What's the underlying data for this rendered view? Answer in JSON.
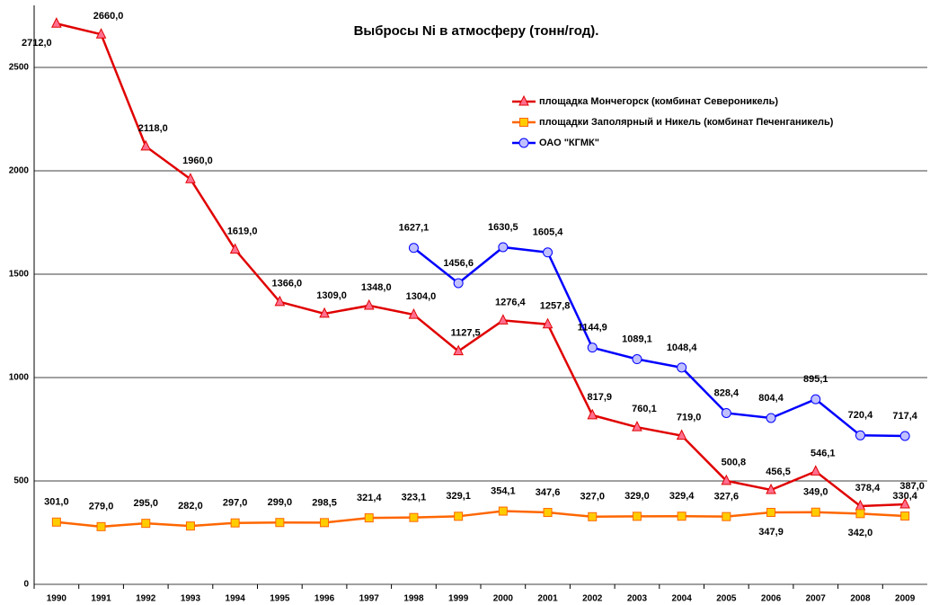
{
  "chart_data": {
    "type": "line",
    "title": "Выбросы Ni в атмосферу (тонн/год).",
    "categories": [
      "1990",
      "1991",
      "1992",
      "1993",
      "1994",
      "1995",
      "1996",
      "1997",
      "1998",
      "1999",
      "2000",
      "2001",
      "2002",
      "2003",
      "2004",
      "2005",
      "2006",
      "2007",
      "2008",
      "2009"
    ],
    "series": [
      {
        "name": "площадка Мончегорск (комбинат Североникель)",
        "color": "#e00000",
        "marker": "triangle",
        "marker_color": "#ff6f8f",
        "values": [
          2712.0,
          2660.0,
          2118.0,
          1960.0,
          1619.0,
          1366.0,
          1309.0,
          1348.0,
          1304.0,
          1127.5,
          1276.4,
          1257.8,
          817.9,
          760.1,
          719.0,
          500.8,
          456.5,
          546.1,
          378.4,
          387.0
        ],
        "value_labels": [
          "2712,0",
          "2660,0",
          "2118,0",
          "1960,0",
          "1619,0",
          "1366,0",
          "1309,0",
          "1348,0",
          "1304,0",
          "1127,5",
          "1276,4",
          "1257,8",
          "817,9",
          "760,1",
          "719,0",
          "500,8",
          "456,5",
          "546,1",
          "378,4",
          "387,0"
        ]
      },
      {
        "name": "площадки Заполярный и Никель (комбинат Печенганикель)",
        "color": "#ff6600",
        "marker": "square",
        "marker_color": "#ffcc00",
        "values": [
          301.0,
          279.0,
          295.0,
          282.0,
          297.0,
          299.0,
          298.5,
          321.4,
          323.1,
          329.1,
          354.1,
          347.6,
          327.0,
          329.0,
          329.4,
          327.6,
          347.9,
          349.0,
          342.0,
          330.4
        ],
        "value_labels": [
          "301,0",
          "279,0",
          "295,0",
          "282,0",
          "297,0",
          "299,0",
          "298,5",
          "321,4",
          "323,1",
          "329,1",
          "354,1",
          "347,6",
          "327,0",
          "329,0",
          "329,4",
          "327,6",
          "347,9",
          "349,0",
          "342,0",
          "330,4"
        ]
      },
      {
        "name": "ОАО \"КГМК\"",
        "color": "#0000ff",
        "marker": "circle",
        "marker_color": "#c0c0ff",
        "values": [
          null,
          null,
          null,
          null,
          null,
          null,
          null,
          null,
          1627.1,
          1456.6,
          1630.5,
          1605.4,
          1144.9,
          1089.1,
          1048.4,
          828.4,
          804.4,
          895.1,
          720.4,
          717.4
        ],
        "value_labels": [
          null,
          null,
          null,
          null,
          null,
          null,
          null,
          null,
          "1627,1",
          "1456,6",
          "1630,5",
          "1605,4",
          "1144,9",
          "1089,1",
          "1048,4",
          "828,4",
          "804,4",
          "895,1",
          "720,4",
          "717,4"
        ]
      }
    ],
    "ylim": [
      0,
      2800
    ],
    "yticks": [
      0,
      500,
      1000,
      1500,
      2000,
      2500
    ],
    "grid": true,
    "legend": "upper-right"
  }
}
